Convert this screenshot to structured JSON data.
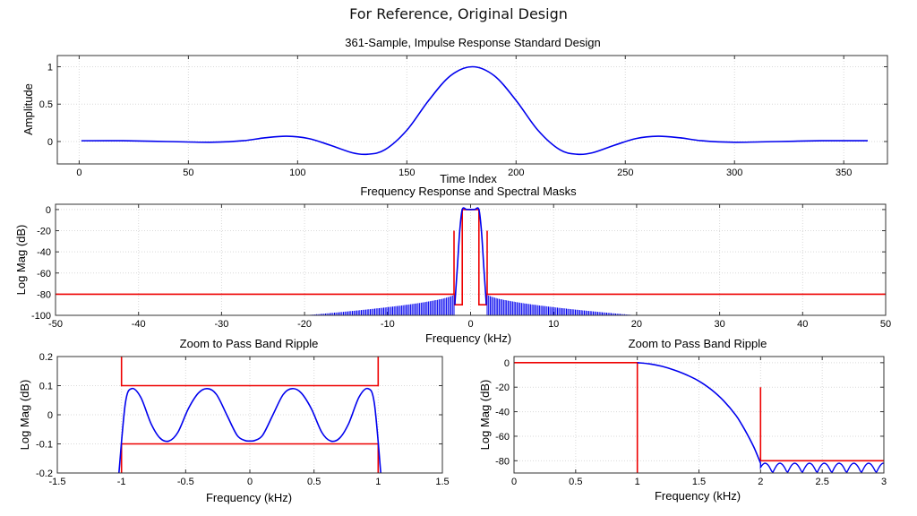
{
  "page_title": "For Reference, Original Design",
  "colors": {
    "response": "#0000ee",
    "mask": "#ee0000",
    "grid": "#d9d9d9"
  },
  "chart_data": [
    {
      "id": "impulse",
      "type": "line",
      "title": "361-Sample, Impulse Response Standard Design",
      "xlabel": "Time Index",
      "ylabel": "Amplitude",
      "xlim": [
        -10,
        370
      ],
      "ylim": [
        -0.3,
        1.15
      ],
      "xticks": [
        0,
        50,
        100,
        150,
        200,
        250,
        300,
        350
      ],
      "yticks": [
        0,
        0.5,
        1
      ],
      "ytick_labels": [
        "0",
        "0.5",
        "1"
      ],
      "grid": true,
      "series": [
        {
          "color": "#0000ee",
          "x": [
            1,
            20,
            40,
            60,
            75,
            85,
            95,
            105,
            115,
            125,
            132,
            140,
            150,
            160,
            170,
            180,
            190,
            200,
            210,
            220,
            228,
            235,
            245,
            255,
            265,
            275,
            285,
            300,
            320,
            340,
            361
          ],
          "y": [
            0.01,
            0.01,
            0.0,
            -0.01,
            0.01,
            0.05,
            0.07,
            0.04,
            -0.05,
            -0.15,
            -0.17,
            -0.11,
            0.15,
            0.55,
            0.88,
            1.0,
            0.88,
            0.55,
            0.15,
            -0.11,
            -0.17,
            -0.15,
            -0.05,
            0.04,
            0.07,
            0.05,
            0.01,
            -0.01,
            0.0,
            0.01,
            0.01
          ]
        }
      ]
    },
    {
      "id": "freq",
      "type": "line",
      "title": "Frequency Response and Spectral Masks",
      "xlabel": "Frequency (kHz)",
      "ylabel": "Log Mag (dB)",
      "xlim": [
        -50,
        50
      ],
      "ylim": [
        -100,
        5
      ],
      "xticks": [
        -50,
        -40,
        -30,
        -20,
        -10,
        0,
        10,
        20,
        30,
        40,
        50
      ],
      "yticks": [
        0,
        -20,
        -40,
        -60,
        -80,
        -100
      ],
      "ytick_labels": [
        "0",
        "-20",
        "-40",
        "-60",
        "-80",
        "-100"
      ],
      "grid": true,
      "series": [
        {
          "color": "#ee0000",
          "x": [
            -50,
            -2,
            -2,
            -2,
            -1.9,
            -1.9,
            -1,
            -1,
            1,
            1,
            1.9,
            1.9,
            2,
            2,
            2,
            50
          ],
          "y": [
            -80,
            -80,
            -20,
            -80,
            -80,
            -90,
            -90,
            0,
            0,
            -90,
            -90,
            -80,
            -80,
            -20,
            -80,
            -80
          ]
        },
        {
          "color": "#0000ee",
          "x": [
            -1.9,
            -1.6,
            -1.3,
            -1,
            -0.5,
            0,
            0.5,
            1,
            1.3,
            1.6,
            1.9
          ],
          "y": [
            -90,
            -55,
            -20,
            0,
            0.1,
            0,
            0.1,
            0,
            -20,
            -55,
            -90
          ]
        }
      ],
      "sidelobe_envelope_db": {
        "at_2khz": -80,
        "at_10khz": -92,
        "at_20khz": -100
      }
    },
    {
      "id": "passband",
      "type": "line",
      "title": "Zoom to Pass Band Ripple",
      "xlabel": "Frequency (kHz)",
      "ylabel": "Log Mag (dB)",
      "xlim": [
        -1.5,
        1.5
      ],
      "ylim": [
        -0.2,
        0.2
      ],
      "xticks": [
        -1.5,
        -1,
        -0.5,
        0,
        0.5,
        1,
        1.5
      ],
      "xtick_labels": [
        "-1.5",
        "-1",
        "-0.5",
        "0",
        "0.5",
        "1",
        "1.5"
      ],
      "yticks": [
        0.2,
        0.1,
        0,
        -0.1,
        -0.2
      ],
      "ytick_labels": [
        "0.2",
        "0.1",
        "0",
        "-0.1",
        "-0.2"
      ],
      "grid": true,
      "series": [
        {
          "color": "#ee0000",
          "x": [
            -1,
            -1,
            1,
            1
          ],
          "y": [
            0.2,
            0.1,
            0.1,
            0.2
          ]
        },
        {
          "color": "#ee0000",
          "x": [
            -1,
            -1,
            1,
            1
          ],
          "y": [
            -0.2,
            -0.1,
            -0.1,
            -0.2
          ]
        },
        {
          "color": "#0000ee",
          "x": [
            -1.02,
            -0.97,
            -0.92,
            -0.85,
            -0.77,
            -0.7,
            -0.63,
            -0.56,
            -0.48,
            -0.4,
            -0.33,
            -0.26,
            -0.18,
            -0.1,
            -0.04,
            0,
            0.04,
            0.1,
            0.18,
            0.26,
            0.33,
            0.4,
            0.48,
            0.56,
            0.63,
            0.7,
            0.77,
            0.85,
            0.92,
            0.97,
            1.02
          ],
          "y": [
            -0.2,
            0.04,
            0.09,
            0.06,
            -0.03,
            -0.08,
            -0.09,
            -0.06,
            0.02,
            0.075,
            0.09,
            0.07,
            0.0,
            -0.07,
            -0.088,
            -0.09,
            -0.088,
            -0.07,
            0.0,
            0.07,
            0.09,
            0.075,
            0.02,
            -0.06,
            -0.09,
            -0.08,
            -0.03,
            0.06,
            0.09,
            0.04,
            -0.2
          ]
        }
      ]
    },
    {
      "id": "zoom2",
      "type": "line",
      "title": "Zoom to Pass Band Ripple",
      "xlabel": "Frequency (kHz)",
      "ylabel": "Log Mag (dB)",
      "xlim": [
        0,
        3
      ],
      "ylim": [
        -90,
        5
      ],
      "xticks": [
        0,
        0.5,
        1,
        1.5,
        2,
        2.5,
        3
      ],
      "xtick_labels": [
        "0",
        "0.5",
        "1",
        "1.5",
        "2",
        "2.5",
        "3"
      ],
      "yticks": [
        0,
        -20,
        -40,
        -60,
        -80
      ],
      "ytick_labels": [
        "0",
        "-20",
        "-40",
        "-60",
        "-80"
      ],
      "grid": true,
      "series": [
        {
          "color": "#ee0000",
          "x": [
            0,
            1,
            1,
            1
          ],
          "y": [
            0,
            0,
            -90,
            0
          ]
        },
        {
          "color": "#ee0000",
          "x": [
            2,
            2,
            2,
            3
          ],
          "y": [
            -20,
            -80,
            -80,
            -80
          ]
        },
        {
          "color": "#0000ee",
          "x": [
            1.0,
            1.1,
            1.2,
            1.3,
            1.4,
            1.5,
            1.6,
            1.7,
            1.8,
            1.85,
            1.9,
            1.95,
            2.0
          ],
          "y": [
            0,
            -1,
            -3,
            -6,
            -10,
            -15,
            -22,
            -31,
            -43,
            -51,
            -60,
            -70,
            -82
          ]
        }
      ],
      "stopband_ripple_db": {
        "floor": -90,
        "peak": -82,
        "lobe_width_khz": 0.12
      }
    }
  ]
}
